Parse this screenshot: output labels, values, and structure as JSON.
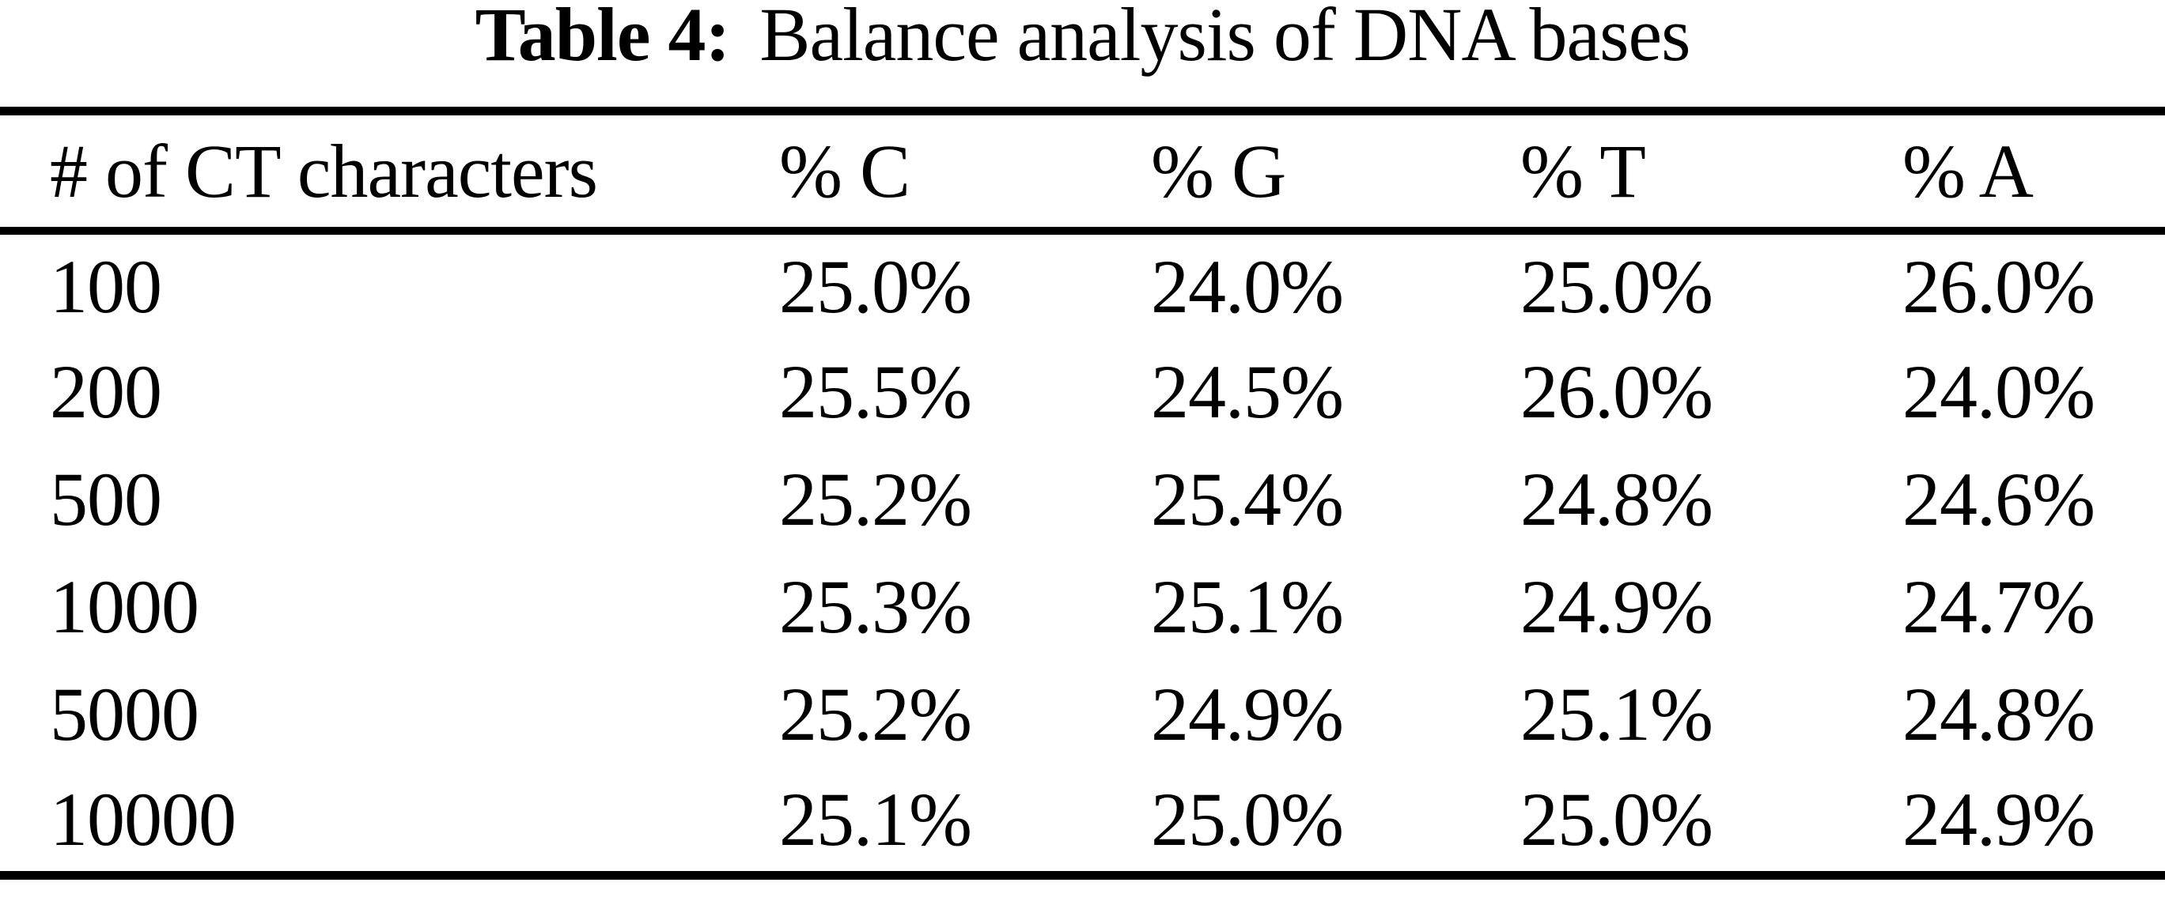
{
  "page": {
    "background": "#ffffff",
    "text_color": "#000000"
  },
  "caption": {
    "label": "Table 4:",
    "title": "Balance analysis of DNA bases"
  },
  "table": {
    "columns": [
      "# of CT characters",
      "% C",
      "% G",
      "% T",
      "% A"
    ],
    "rows": [
      [
        "100",
        "25.0%",
        "24.0%",
        "25.0%",
        "26.0%"
      ],
      [
        "200",
        "25.5%",
        "24.5%",
        "26.0%",
        "24.0%"
      ],
      [
        "500",
        "25.2%",
        "25.4%",
        "24.8%",
        "24.6%"
      ],
      [
        "1000",
        "25.3%",
        "25.1%",
        "24.9%",
        "24.7%"
      ],
      [
        "5000",
        "25.2%",
        "24.9%",
        "25.1%",
        "24.8%"
      ],
      [
        "10000",
        "25.1%",
        "25.0%",
        "25.0%",
        "24.9%"
      ]
    ]
  },
  "chart_data": {
    "type": "table",
    "title": "Table 4: Balance analysis of DNA bases",
    "columns": [
      "# of CT characters",
      "% C",
      "% G",
      "% T",
      "% A"
    ],
    "rows": [
      [
        100,
        25.0,
        24.0,
        25.0,
        26.0
      ],
      [
        200,
        25.5,
        24.5,
        26.0,
        24.0
      ],
      [
        500,
        25.2,
        25.4,
        24.8,
        24.6
      ],
      [
        1000,
        25.3,
        25.1,
        24.9,
        24.7
      ],
      [
        5000,
        25.2,
        24.9,
        25.1,
        24.8
      ],
      [
        10000,
        25.1,
        25.0,
        25.0,
        24.9
      ]
    ]
  }
}
